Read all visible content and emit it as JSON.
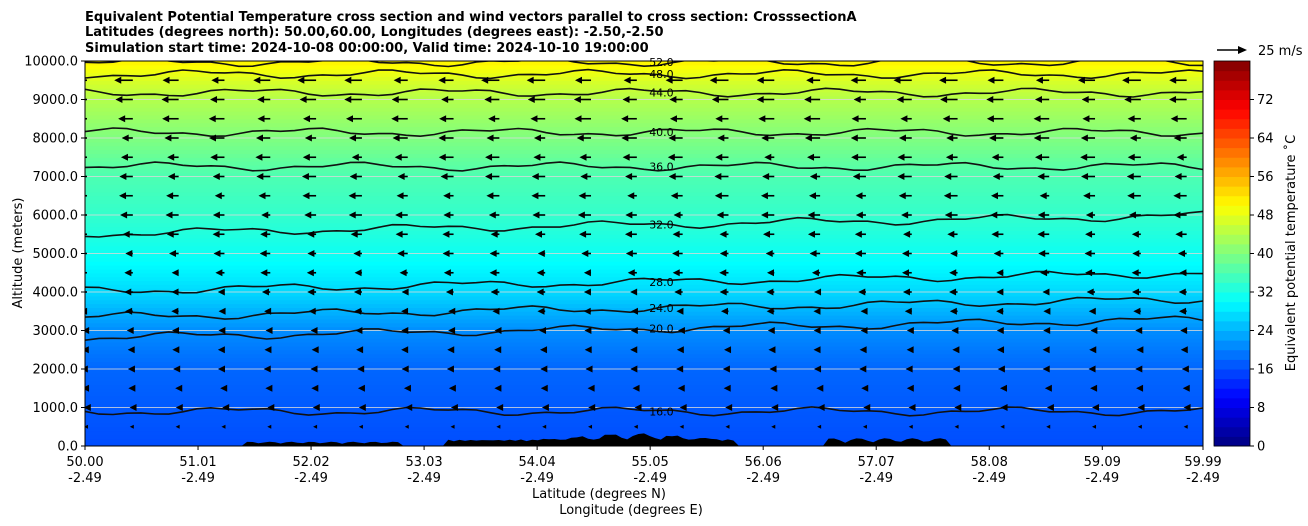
{
  "chart_data": {
    "type": "heatmap",
    "title_lines": [
      "Equivalent Potential Temperature cross section and wind vectors parallel to cross section: CrosssectionA",
      "Latitudes (degrees north): 50.00,60.00, Longitudes (degrees east): -2.50,-2.50",
      "Simulation start time: 2024-10-08 00:00:00, Valid time: 2024-10-10 19:00:00"
    ],
    "xlabel": "Latitude (degrees N)",
    "xlabel2": "Longitude (degrees E)",
    "ylabel": "Altitude (meters)",
    "x_ticks": [
      {
        "lat": "50.00",
        "lon": "-2.49"
      },
      {
        "lat": "51.01",
        "lon": "-2.49"
      },
      {
        "lat": "52.02",
        "lon": "-2.49"
      },
      {
        "lat": "53.03",
        "lon": "-2.49"
      },
      {
        "lat": "54.04",
        "lon": "-2.49"
      },
      {
        "lat": "55.05",
        "lon": "-2.49"
      },
      {
        "lat": "56.06",
        "lon": "-2.49"
      },
      {
        "lat": "57.07",
        "lon": "-2.49"
      },
      {
        "lat": "58.08",
        "lon": "-2.49"
      },
      {
        "lat": "59.09",
        "lon": "-2.49"
      },
      {
        "lat": "59.99",
        "lon": "-2.49"
      }
    ],
    "y_ticks": [
      "0.0",
      "1000.0",
      "2000.0",
      "3000.0",
      "4000.0",
      "5000.0",
      "6000.0",
      "7000.0",
      "8000.0",
      "9000.0",
      "10000.0"
    ],
    "ylim": [
      0,
      10000
    ],
    "xlim": [
      50.0,
      59.99
    ],
    "grid": "horizontal",
    "colorbar": {
      "label": "Equivalent potential temperature ˚C",
      "ticks": [
        "0",
        "8",
        "16",
        "24",
        "32",
        "40",
        "48",
        "56",
        "64",
        "72"
      ],
      "range": [
        0,
        80
      ],
      "colormap": "jet"
    },
    "quiver_key": {
      "label": "25 m/s",
      "speed": 25
    },
    "contour_levels": [
      {
        "label": "16.0",
        "z": 900
      },
      {
        "label": "20.0",
        "z": 3050
      },
      {
        "label": "24.0",
        "z": 3580
      },
      {
        "label": "28.0",
        "z": 4260
      },
      {
        "label": "32.0",
        "z": 5750
      },
      {
        "label": "36.0",
        "z": 7260
      },
      {
        "label": "40.0",
        "z": 8150
      },
      {
        "label": "44.0",
        "z": 9180
      },
      {
        "label": "48.0",
        "z": 9660
      },
      {
        "label": "52.0",
        "z": 9970
      }
    ],
    "temperature_profile": [
      {
        "z": 0,
        "t": 16
      },
      {
        "z": 1000,
        "t": 17
      },
      {
        "z": 2000,
        "t": 18
      },
      {
        "z": 3000,
        "t": 21
      },
      {
        "z": 4000,
        "t": 27
      },
      {
        "z": 5000,
        "t": 31
      },
      {
        "z": 6000,
        "t": 34
      },
      {
        "z": 7000,
        "t": 36
      },
      {
        "z": 8000,
        "t": 40
      },
      {
        "z": 9000,
        "t": 44
      },
      {
        "z": 9500,
        "t": 47
      },
      {
        "z": 10000,
        "t": 51
      }
    ],
    "wind_profile": [
      {
        "z": 0,
        "u": 0
      },
      {
        "z": 1000,
        "u": -3
      },
      {
        "z": 2000,
        "u": -6
      },
      {
        "z": 3000,
        "u": -6
      },
      {
        "z": 4000,
        "u": -8
      },
      {
        "z": 5000,
        "u": -10
      },
      {
        "z": 6000,
        "u": -12
      },
      {
        "z": 7000,
        "u": -13
      },
      {
        "z": 8000,
        "u": -14
      },
      {
        "z": 9000,
        "u": -16
      },
      {
        "z": 10000,
        "u": -18
      }
    ]
  }
}
